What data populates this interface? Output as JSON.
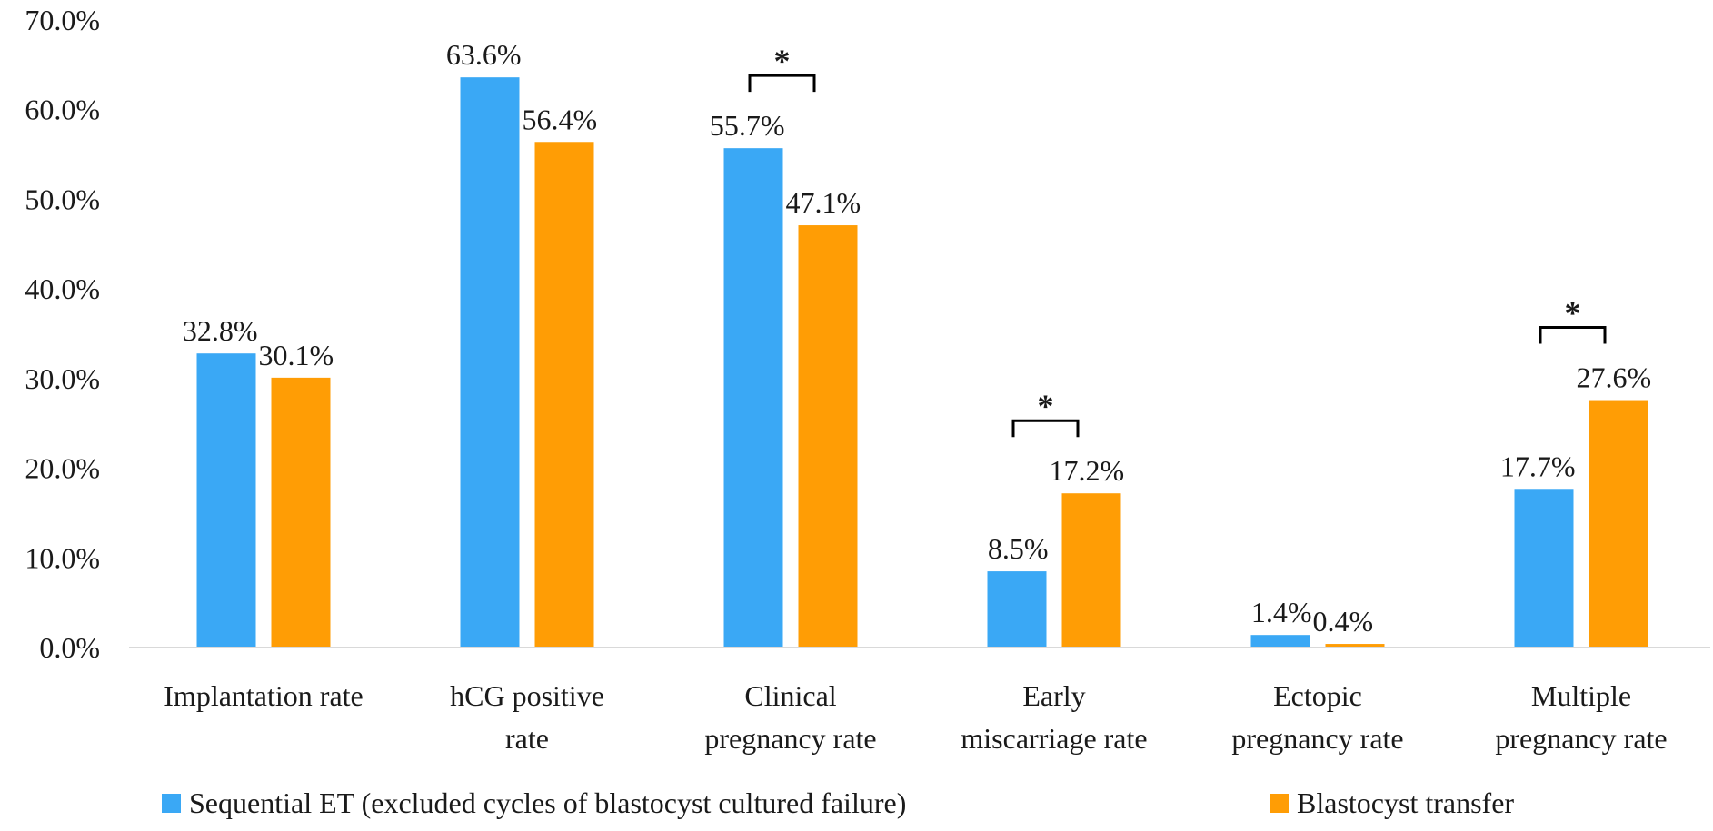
{
  "chart_data": {
    "type": "bar",
    "title": "",
    "xlabel": "",
    "ylabel": "",
    "ylim": [
      0,
      70
    ],
    "y_ticks": [
      0,
      10,
      20,
      30,
      40,
      50,
      60,
      70
    ],
    "y_tick_labels": [
      "0.0%",
      "10.0%",
      "20.0%",
      "30.0%",
      "40.0%",
      "50.0%",
      "60.0%",
      "70.0%"
    ],
    "grid": false,
    "legend_position": "bottom",
    "categories": [
      [
        "Implantation rate"
      ],
      [
        "hCG positive",
        "rate"
      ],
      [
        "Clinical",
        "pregnancy rate"
      ],
      [
        "Early",
        "miscarriage rate"
      ],
      [
        "Ectopic",
        "pregnancy rate"
      ],
      [
        "Multiple",
        "pregnancy rate"
      ]
    ],
    "series": [
      {
        "name": "Sequential ET (excluded cycles of blastocyst cultured failure)",
        "color": "#3AA8F5",
        "values": [
          32.8,
          63.6,
          55.7,
          8.5,
          1.4,
          17.7
        ],
        "labels": [
          "32.8%",
          "63.6%",
          "55.7%",
          "8.5%",
          "1.4%",
          "17.7%"
        ]
      },
      {
        "name": "Blastocyst transfer",
        "color": "#FF9D05",
        "values": [
          30.1,
          56.4,
          47.1,
          17.2,
          0.4,
          27.6
        ],
        "labels": [
          "30.1%",
          "56.4%",
          "47.1%",
          "17.2%",
          "0.4%",
          "27.6%"
        ]
      }
    ],
    "significance": [
      {
        "category_index": 2,
        "marker": "*"
      },
      {
        "category_index": 3,
        "marker": "*"
      },
      {
        "category_index": 5,
        "marker": "*"
      }
    ]
  }
}
